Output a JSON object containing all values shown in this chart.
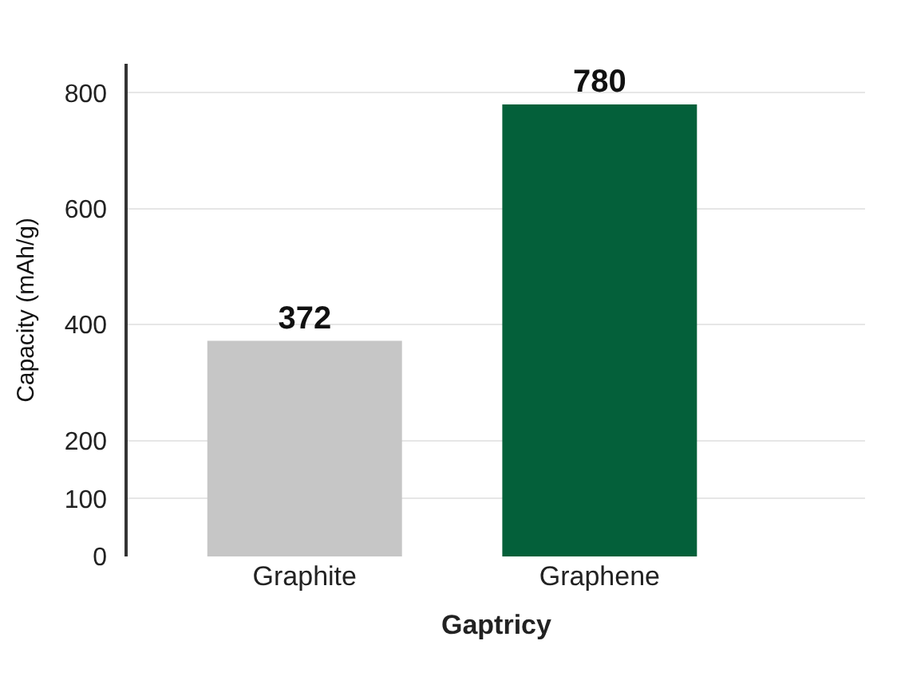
{
  "chart_data": {
    "type": "bar",
    "categories": [
      "Graphite",
      "Graphene"
    ],
    "values": [
      372,
      780
    ],
    "colors": [
      "#c6c6c6",
      "#04603a"
    ],
    "xlabel": "Gaptricy",
    "ylabel": "Capacity (mAh/g)",
    "ylim": [
      0,
      850
    ],
    "yticks": [
      0,
      100,
      200,
      400,
      600,
      800
    ],
    "grid": "y",
    "data_labels": true
  }
}
